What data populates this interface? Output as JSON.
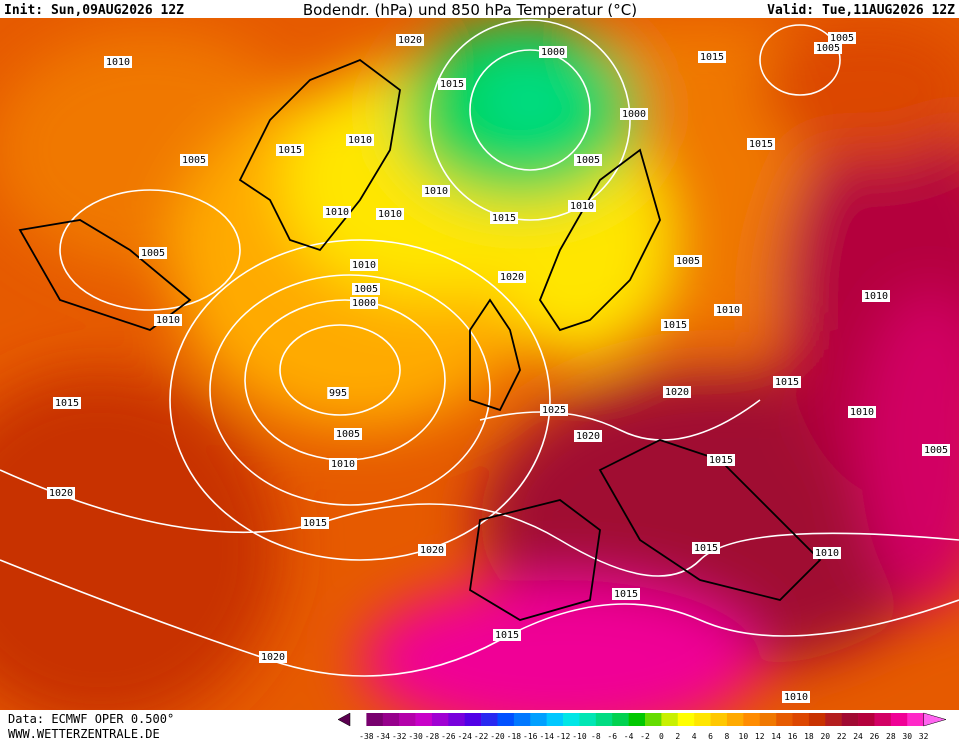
{
  "header": {
    "init": "Init: Sun,09AUG2026 12Z",
    "title": "Bodendr. (hPa) und 850 hPa Temperatur (°C)",
    "valid": "Valid: Tue,11AUG2026 12Z"
  },
  "isobar_labels": [
    1020,
    1000,
    1005,
    1005,
    1015,
    1010,
    1015,
    1000,
    1010,
    1015,
    1015,
    1005,
    1005,
    1010,
    1010,
    1010,
    1010,
    1015,
    1005,
    1010,
    1005,
    1020,
    1005,
    1010,
    1000,
    1010,
    1010,
    1015,
    995,
    1020,
    1015,
    1015,
    1025,
    1010,
    1005,
    1020,
    1005,
    1015,
    1010,
    1020,
    1015,
    1020,
    1015,
    1010,
    1015,
    1015,
    1020,
    1010
  ],
  "footer": {
    "source": "Data: ECMWF OPER 0.500°",
    "website": "WWW.WETTERZENTRALE.DE"
  },
  "colorbar": {
    "labels": [
      -38,
      -34,
      -32,
      -30,
      -28,
      -26,
      -24,
      -22,
      -20,
      -18,
      -16,
      -14,
      -12,
      -10,
      -8,
      -6,
      -4,
      -2,
      0,
      2,
      4,
      6,
      8,
      10,
      12,
      14,
      16,
      18,
      20,
      22,
      24,
      26,
      28,
      30,
      32
    ],
    "colors": [
      "#5a0050",
      "#78006e",
      "#96008c",
      "#b400aa",
      "#c800c8",
      "#a000d2",
      "#7800dc",
      "#5000e6",
      "#2828f0",
      "#0050ff",
      "#0078ff",
      "#00a0ff",
      "#00c8ff",
      "#00e6e6",
      "#00e6b4",
      "#00dc82",
      "#00d250",
      "#00c800",
      "#64dc00",
      "#c8f000",
      "#ffff00",
      "#ffe600",
      "#ffc800",
      "#ffaa00",
      "#ff8c00",
      "#f07800",
      "#e65a00",
      "#dc4600",
      "#c83200",
      "#b41e1e",
      "#a00a32",
      "#b4003c",
      "#d20064",
      "#f00096",
      "#ff28c8",
      "#ff64f0"
    ]
  }
}
